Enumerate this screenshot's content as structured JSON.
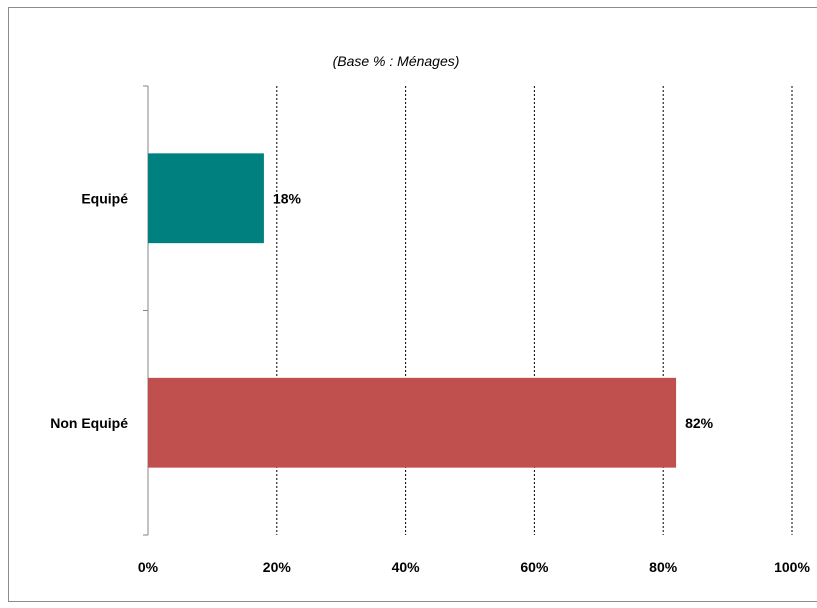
{
  "chart_data": {
    "type": "bar",
    "orientation": "horizontal",
    "subtitle": "(Base % : Ménages)",
    "categories": [
      "Equipé",
      "Non Equipé"
    ],
    "values": [
      18,
      82
    ],
    "value_labels": [
      "18%",
      "82%"
    ],
    "colors": [
      "#00807f",
      "#c0504d"
    ],
    "xlim": [
      0,
      100
    ],
    "x_ticks": [
      0,
      20,
      40,
      60,
      80,
      100
    ],
    "x_tick_labels": [
      "0%",
      "20%",
      "40%",
      "60%",
      "80%",
      "100%"
    ],
    "grid": "vertical-dashed",
    "legend": "none"
  }
}
